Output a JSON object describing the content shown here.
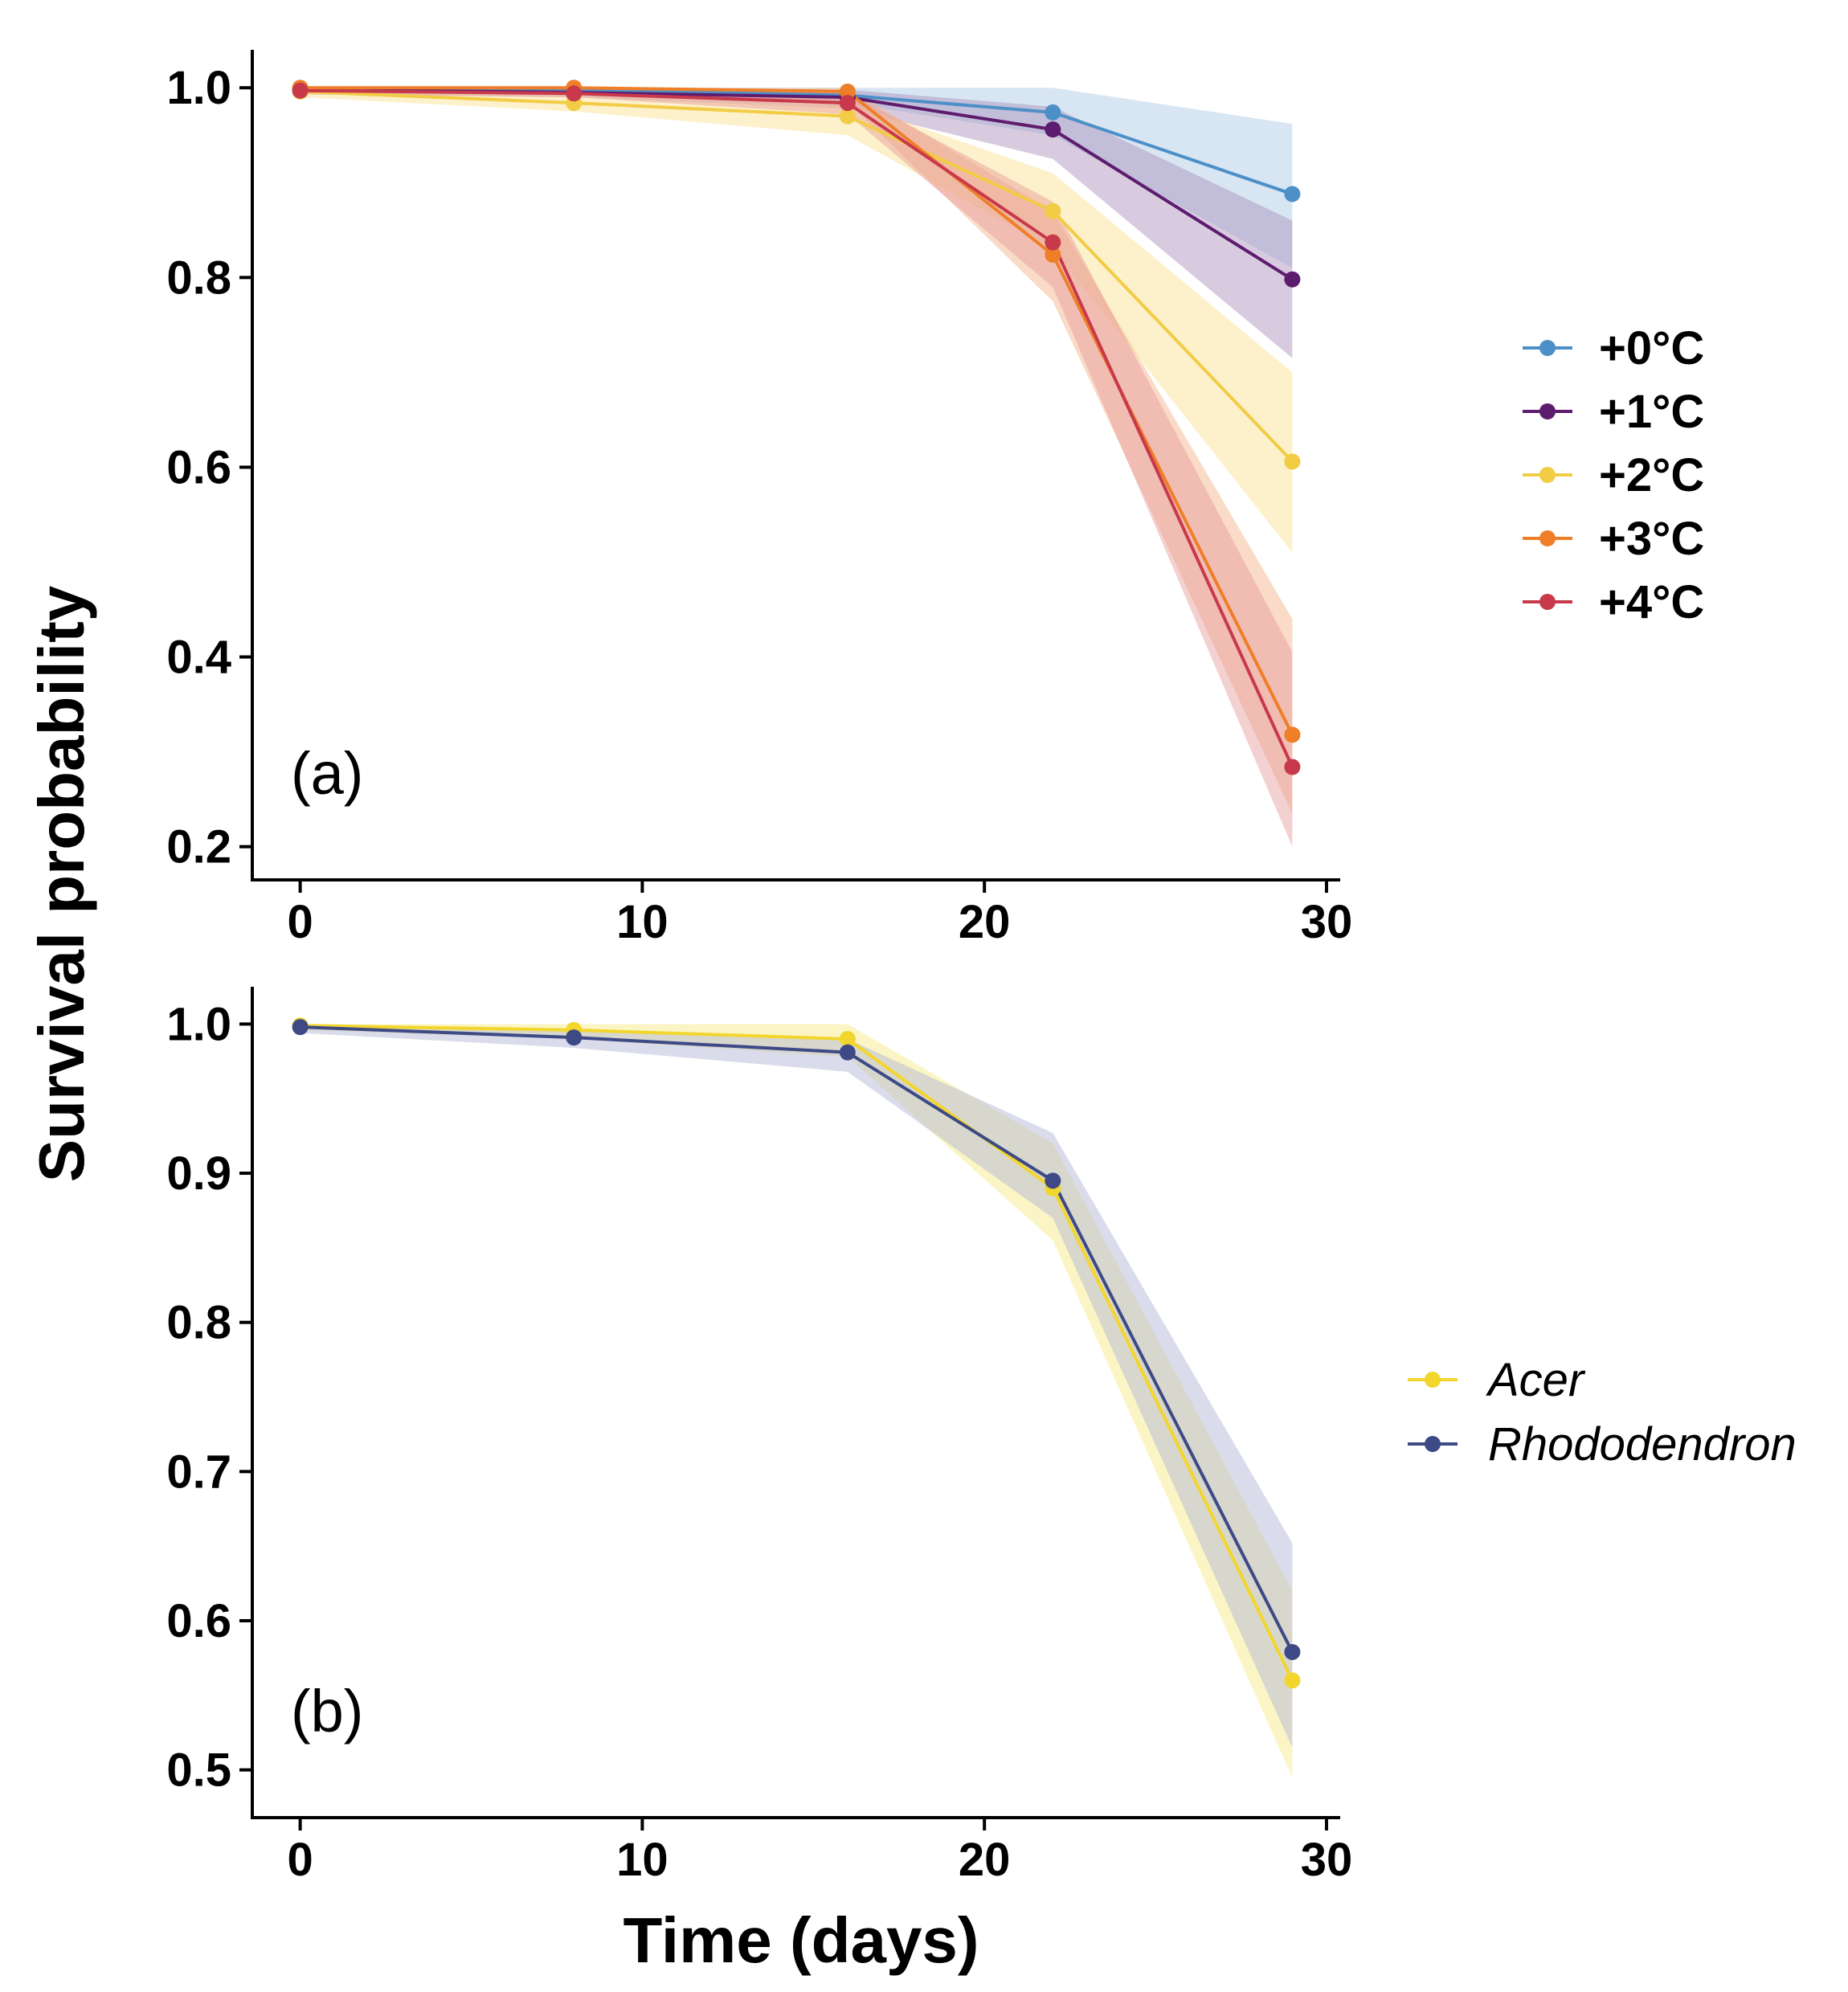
{
  "figure": {
    "ylabel": "Survival probability",
    "xlabel": "Time (days)"
  },
  "chart_data": [
    {
      "type": "line",
      "panel_label": "(a)",
      "x": [
        0,
        8,
        16,
        22,
        29
      ],
      "xlim": [
        -1.4,
        30.4
      ],
      "ylim": [
        0.165,
        1.04
      ],
      "xticks": [
        "0",
        "10",
        "20",
        "30"
      ],
      "yticks": [
        "0.2",
        "0.4",
        "0.6",
        "0.8",
        "1.0"
      ],
      "legend_style": "bold",
      "legend_position": "right",
      "series": [
        {
          "name": "+0°C",
          "color": "#4D8FC7",
          "band_color": "#C3D9EC",
          "band_opacity": 0.65,
          "values": [
            0.999,
            0.998,
            0.992,
            0.974,
            0.888
          ],
          "lower": [
            0.996,
            0.994,
            0.984,
            0.95,
            0.81
          ],
          "upper": [
            1.0,
            1.0,
            1.0,
            1.0,
            0.962
          ]
        },
        {
          "name": "+1°C",
          "color": "#5E1C6E",
          "band_color": "#A98BB8",
          "band_opacity": 0.45,
          "values": [
            0.998,
            0.995,
            0.99,
            0.956,
            0.798
          ],
          "lower": [
            0.994,
            0.99,
            0.978,
            0.925,
            0.715
          ],
          "upper": [
            1.0,
            1.0,
            0.998,
            0.98,
            0.86
          ]
        },
        {
          "name": "+2°C",
          "color": "#F2CC45",
          "band_color": "#FBE6A0",
          "band_opacity": 0.55,
          "values": [
            0.996,
            0.984,
            0.97,
            0.87,
            0.606
          ],
          "lower": [
            0.99,
            0.975,
            0.95,
            0.83,
            0.51
          ],
          "upper": [
            1.0,
            0.992,
            0.985,
            0.91,
            0.7
          ]
        },
        {
          "name": "+3°C",
          "color": "#EE7F28",
          "band_color": "#F4B890",
          "band_opacity": 0.5,
          "values": [
            1.0,
            1.0,
            0.996,
            0.824,
            0.318
          ],
          "lower": [
            0.997,
            0.996,
            0.985,
            0.775,
            0.235
          ],
          "upper": [
            1.0,
            1.0,
            1.0,
            0.87,
            0.44
          ]
        },
        {
          "name": "+4°C",
          "color": "#C7394B",
          "band_color": "#E69A9A",
          "band_opacity": 0.45,
          "values": [
            0.997,
            0.994,
            0.984,
            0.837,
            0.284
          ],
          "lower": [
            0.993,
            0.99,
            0.972,
            0.79,
            0.2
          ],
          "upper": [
            1.0,
            0.998,
            0.995,
            0.88,
            0.405
          ]
        }
      ]
    },
    {
      "type": "line",
      "panel_label": "(b)",
      "x": [
        0,
        8,
        16,
        22,
        29
      ],
      "xlim": [
        -1.4,
        30.4
      ],
      "ylim": [
        0.468,
        1.025
      ],
      "xticks": [
        "0",
        "10",
        "20",
        "30"
      ],
      "yticks": [
        "0.5",
        "0.6",
        "0.7",
        "0.8",
        "0.9",
        "1.0"
      ],
      "legend_style": "italic",
      "legend_position": "right",
      "series": [
        {
          "name": "Acer",
          "color": "#F2D62E",
          "band_color": "#F8EE9E",
          "band_opacity": 0.6,
          "values": [
            0.999,
            0.996,
            0.99,
            0.89,
            0.56
          ],
          "lower": [
            0.996,
            0.99,
            0.978,
            0.855,
            0.495
          ],
          "upper": [
            1.0,
            1.0,
            1.0,
            0.92,
            0.62
          ]
        },
        {
          "name": "Rhododendron",
          "color": "#3E4A85",
          "band_color": "#B5BAD8",
          "band_opacity": 0.5,
          "values": [
            0.998,
            0.991,
            0.981,
            0.895,
            0.579
          ],
          "lower": [
            0.994,
            0.984,
            0.968,
            0.87,
            0.515
          ],
          "upper": [
            1.0,
            0.996,
            0.99,
            0.927,
            0.652
          ]
        }
      ]
    }
  ]
}
